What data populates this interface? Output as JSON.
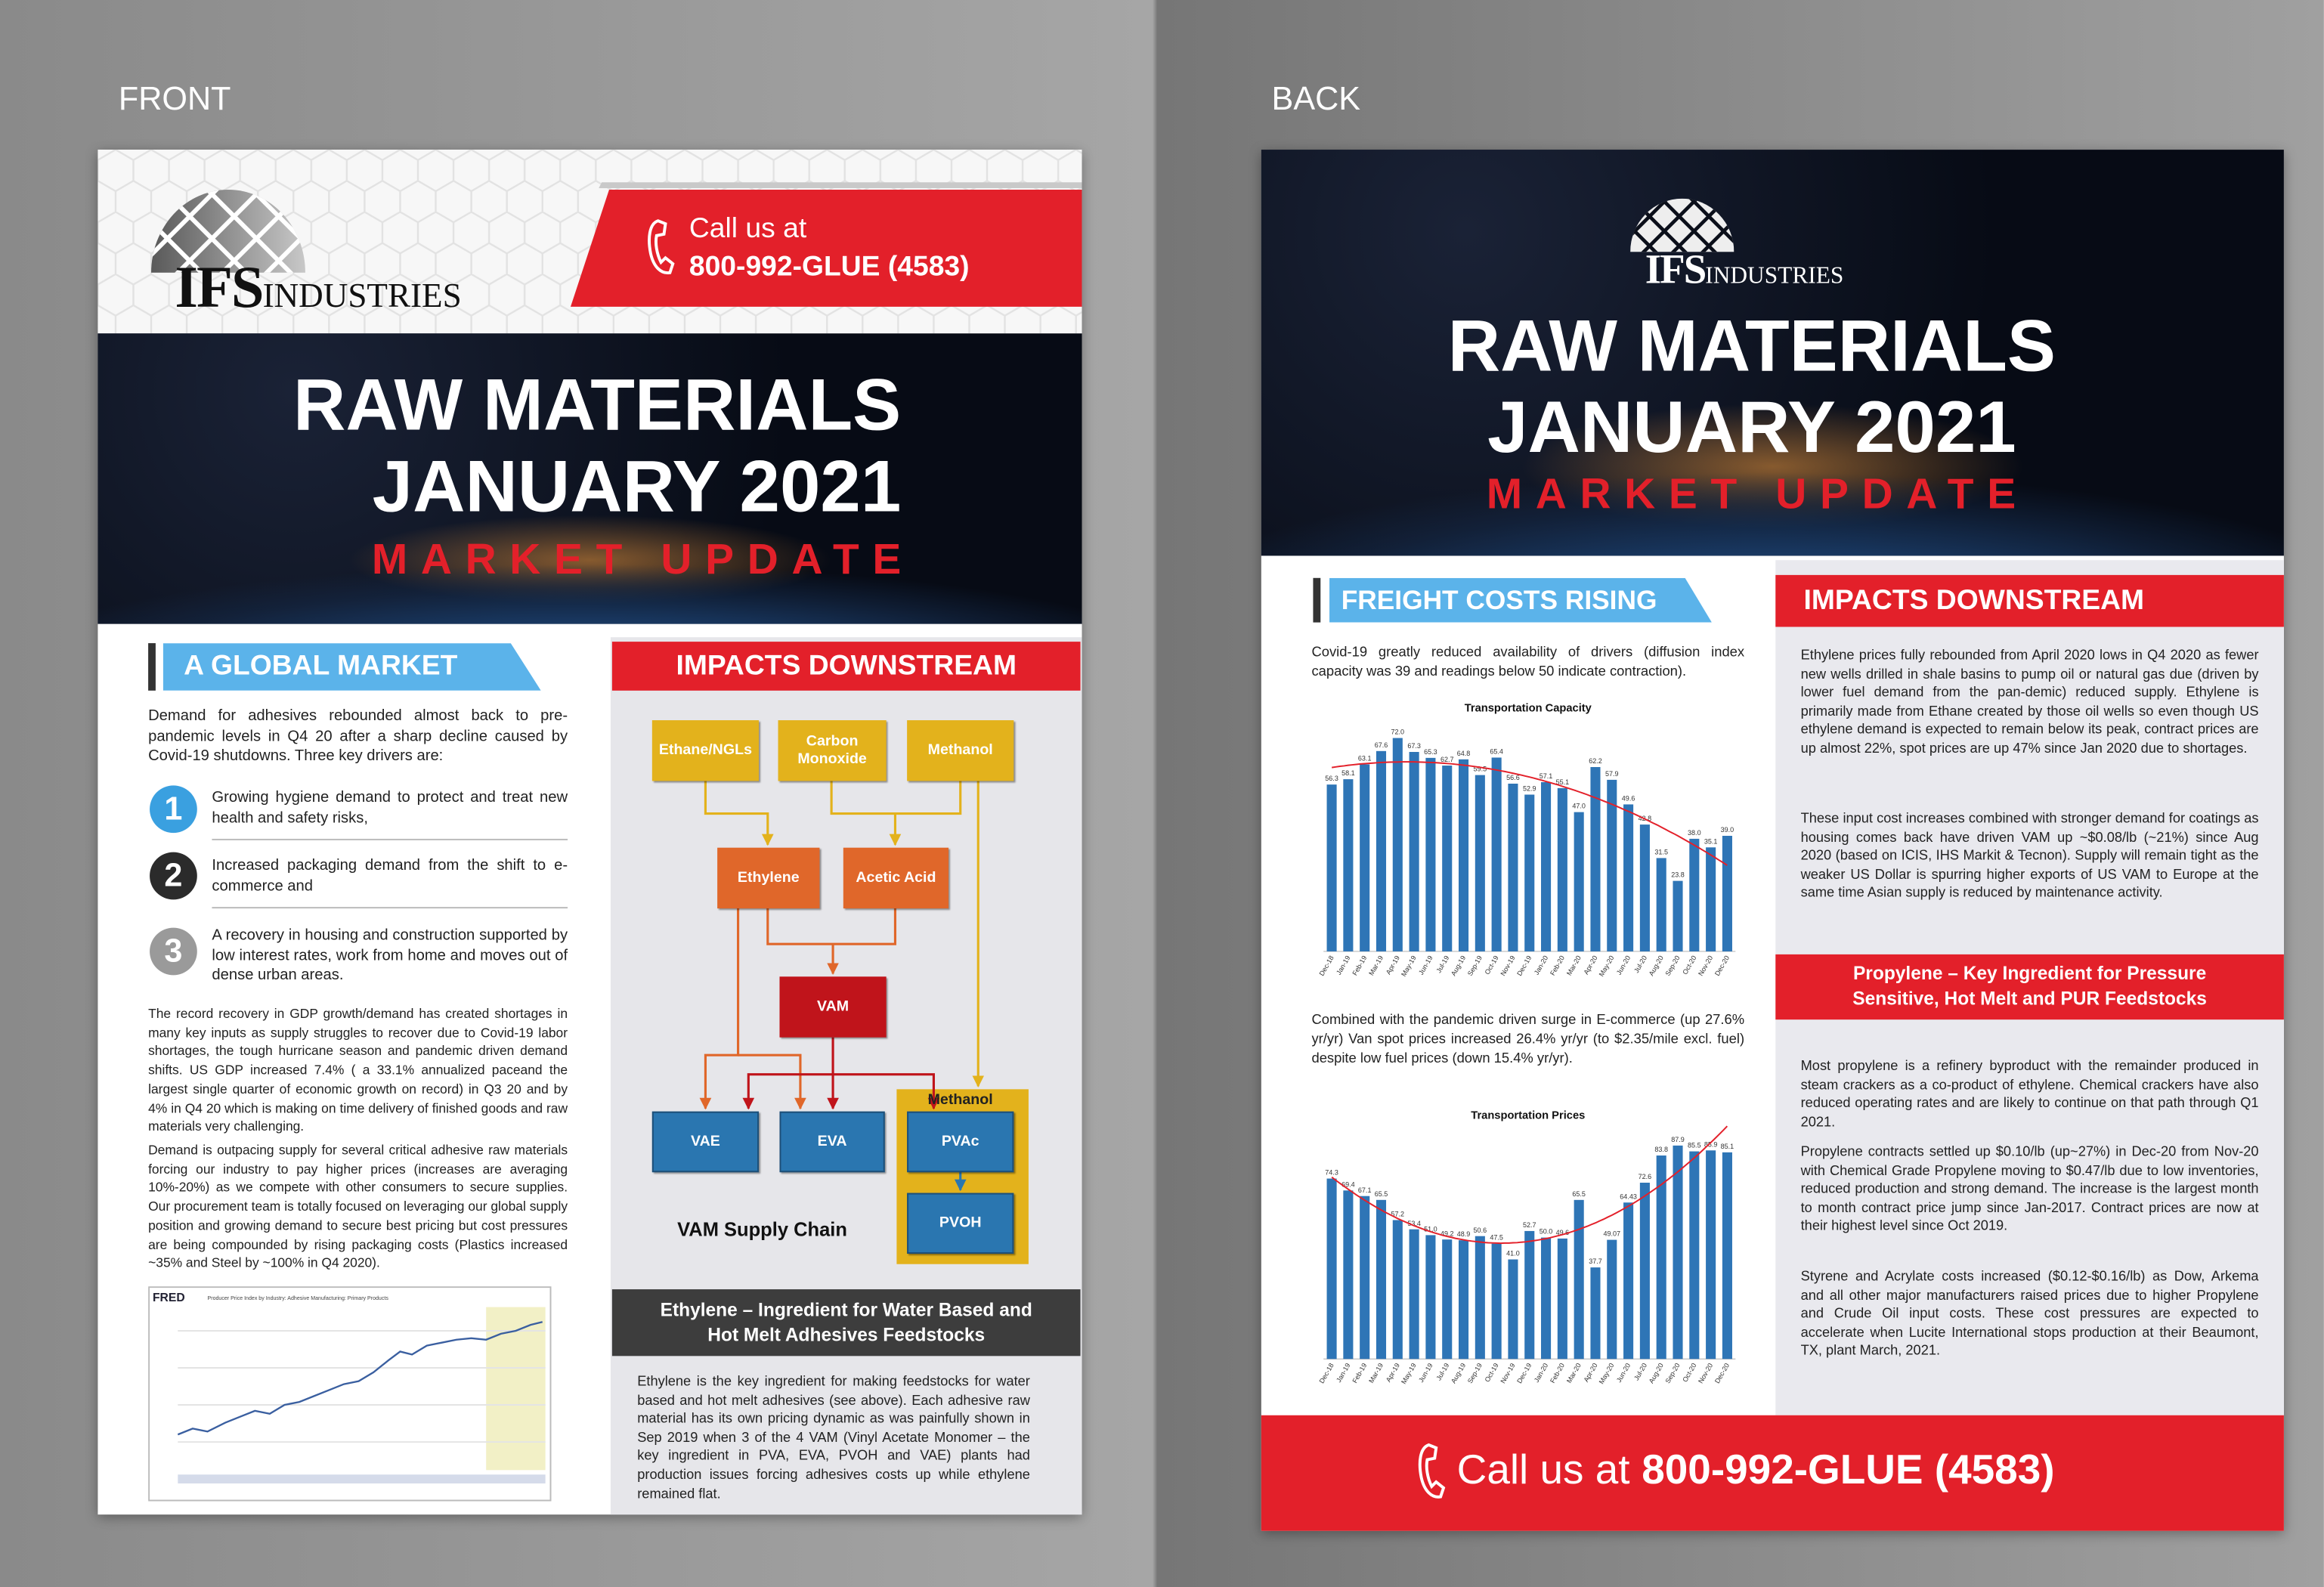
{
  "labels": {
    "front": "FRONT",
    "back": "BACK"
  },
  "front": {
    "logo": {
      "mark": "IFS",
      "name": "INDUSTRIES"
    },
    "call": {
      "lead": "Call us at",
      "number": "800-992-GLUE (4583)"
    },
    "hero": {
      "line1": "RAW MATERIALS",
      "line2": "JANUARY 2021",
      "line3": "MARKET UPDATE"
    },
    "global": {
      "heading": "A GLOBAL MARKET",
      "intro": "Demand for adhesives rebounded almost back to pre-pandemic levels in Q4 20 after a sharp decline caused by Covid-19 shutdowns. Three key drivers are:",
      "drivers": [
        {
          "number": "1",
          "text": "Growing hygiene demand to protect and treat new health and safety risks,"
        },
        {
          "number": "2",
          "text": "Increased packaging demand from the shift to e-commerce and"
        },
        {
          "number": "3",
          "text": "A recovery in housing and construction supported by low interest rates, work from home and moves out of dense urban areas."
        }
      ],
      "paragraphs": [
        "The record recovery in GDP growth/demand has created shortages in many key inputs as supply struggles to recover due to Covid-19 labor shortages, the tough hurricane season and pandemic driven demand shifts. US GDP increased 7.4% ( a 33.1% annualized paceand the largest single quarter of economic growth on record) in Q3 20 and by 4% in Q4 20 which is making on time delivery of finished goods and raw materials very challenging.",
        "Demand is outpacing supply for several critical adhesive raw materials forcing our industry to pay higher prices (increases are averaging 10%-20%) as we compete with other consumers to secure supplies. Our procurement team is totally focused on leveraging our global supply position and growing demand to secure best pricing but cost pressures are being compounded by rising packaging costs (Plastics increased ~35% and Steel by ~100% in Q4 2020)."
      ]
    },
    "fred": {
      "logo": "FRED",
      "title": "Producer Price Index by Industry: Adhesive Manufacturing: Primary Products"
    },
    "impacts": {
      "heading": "IMPACTS DOWNSTREAM"
    },
    "diagram": {
      "nodes": [
        "Ethane/NGLs",
        "Carbon Monoxide",
        "Methanol",
        "Ethylene",
        "Acetic Acid",
        "VAM",
        "VAE",
        "EVA",
        "PVAc",
        "PVOH"
      ],
      "frame_label": "Methanol",
      "caption": "VAM Supply Chain"
    },
    "ethylene": {
      "heading": "Ethylene – Ingredient for Water Based and Hot Melt Adhesives Feedstocks",
      "text": "Ethylene is the key ingredient for making feedstocks for water based and hot melt adhesives (see above). Each adhesive raw material has its own pricing dynamic as was painfully shown in Sep 2019 when 3 of the 4 VAM (Vinyl Acetate Monomer – the key ingredient in PVA, EVA, PVOH and VAE) plants had production issues forcing adhesives costs up while ethylene remained flat."
    }
  },
  "back": {
    "logo": {
      "mark": "IFS",
      "name": "INDUSTRIES"
    },
    "hero": {
      "line1": "RAW MATERIALS",
      "line2": "JANUARY 2021",
      "line3": "MARKET UPDATE"
    },
    "freight": {
      "heading": "FREIGHT COSTS RISING",
      "paragraphs": [
        "Covid-19 greatly reduced availability of drivers (diffusion index capacity was 39 and readings below 50 indicate contraction).",
        "Combined with the pandemic driven surge in E-commerce (up 27.6% yr/yr) Van spot prices increased 26.4% yr/yr (to $2.35/mile excl. fuel) despite low fuel prices (down 15.4% yr/yr)."
      ]
    },
    "impacts": {
      "heading": "IMPACTS DOWNSTREAM",
      "paragraphs": [
        "Ethylene prices fully rebounded from April 2020 lows in Q4 2020 as fewer new wells drilled in shale basins to pump oil or natural gas due (driven by lower fuel demand from the pan-demic) reduced supply. Ethylene is primarily made from Ethane created by those oil wells so even though US ethylene demand is expected to remain below its peak, contract prices are up almost 22%, spot prices are up 47% since Jan 2020 due to shortages.",
        "These input cost increases combined with stronger demand for coatings as housing comes back have driven VAM up ~$0.08/lb (~21%) since Aug 2020 (based on ICIS, IHS Markit & Tecnon). Supply will remain tight as the weaker US Dollar is spurring higher exports of US VAM to Europe at the same time Asian supply is reduced by maintenance activity."
      ]
    },
    "propylene": {
      "heading": "Propylene – Key Ingredient for Pressure Sensitive, Hot Melt and PUR Feedstocks",
      "paragraphs": [
        "Most propylene is a refinery byproduct with the remainder produced in steam crackers as a co-product of ethylene. Chemical crackers have also reduced operating rates and are likely to continue on that path through Q1 2021.",
        "Propylene contracts settled up $0.10/lb (up~27%) in Dec-20 from Nov-20 with Chemical Grade Propylene moving to $0.47/lb due to low inventories, reduced production and strong demand. The increase is the largest month to month contract price jump since Jan-2017. Contract prices are now at their highest level since Oct 2019.",
        "Styrene and Acrylate costs increased ($0.12-$0.16/lb) as Dow, Arkema and all other major manufacturers raised prices due to higher Propylene and Crude Oil input costs. These cost pressures are expected to accelerate when Lucite International stops production at their Beaumont, TX, plant March, 2021."
      ]
    },
    "footer": {
      "lead": "Call us at",
      "number": "800-992-GLUE (4583)"
    }
  },
  "chart_data": [
    {
      "type": "bar",
      "title": "Transportation Capacity",
      "color": "#2e75b6",
      "trend_color": "#e3202a",
      "categories": [
        "Dec-18",
        "Jan-19",
        "Feb-19",
        "Mar-19",
        "Apr-19",
        "May-19",
        "Jun-19",
        "Jul-19",
        "Aug-19",
        "Sep-19",
        "Oct-19",
        "Nov-19",
        "Dec-19",
        "Jan-20",
        "Feb-20",
        "Mar-20",
        "Apr-20",
        "May-20",
        "Jun-20",
        "Jul-20",
        "Aug-20",
        "Sep-20",
        "Oct-20",
        "Nov-20",
        "Dec-20"
      ],
      "values": [
        56.3,
        58.1,
        63.1,
        67.6,
        72.0,
        67.3,
        65.3,
        62.7,
        64.8,
        59.5,
        65.4,
        56.6,
        52.9,
        57.1,
        55.1,
        47.0,
        62.2,
        57.9,
        49.6,
        42.8,
        31.5,
        23.8,
        38.0,
        35.1,
        39.0
      ],
      "value_labels": [
        "56.3",
        "58.1",
        "63.1",
        "67.6",
        "72.0",
        "67.3",
        "65.3",
        "62.7",
        "64.8",
        "59.5",
        "65.4",
        "56.6",
        "52.9",
        "57.1",
        "55.1",
        "47.0",
        "62.2",
        "57.9",
        "49.6",
        "42.8",
        "31.5",
        "23.8",
        "38.0",
        "35.1",
        "39.0"
      ]
    },
    {
      "type": "bar",
      "title": "Transportation Prices",
      "color": "#2e75b6",
      "trend_color": "#e3202a",
      "categories": [
        "Dec-18",
        "Jan-19",
        "Feb-19",
        "Mar-19",
        "Apr-19",
        "May-19",
        "Jun-19",
        "Jul-19",
        "Aug-19",
        "Sep-19",
        "Oct-19",
        "Nov-19",
        "Dec-19",
        "Jan-20",
        "Feb-20",
        "Mar-20",
        "Apr-20",
        "May-20",
        "Jun-20",
        "Jul-20",
        "Aug-20",
        "Sep-20",
        "Oct-20",
        "Nov-20",
        "Dec-20"
      ],
      "values": [
        74.3,
        69.4,
        67.1,
        65.5,
        57.2,
        53.4,
        51.0,
        49.2,
        48.9,
        50.6,
        47.5,
        41.0,
        52.7,
        50.0,
        49.6,
        65.5,
        37.7,
        49.07,
        64.43,
        72.6,
        83.8,
        87.9,
        85.5,
        85.9,
        85.1
      ],
      "value_labels": [
        "74.3",
        "69.4",
        "67.1",
        "65.5",
        "57.2",
        "53.4",
        "51.0",
        "49.2",
        "48.9",
        "50.6",
        "47.5",
        "41.0",
        "52.7",
        "50.0",
        "49.6",
        "65.5",
        "37.7",
        "49.07",
        "64.43",
        "72.6",
        "83.8",
        "87.9",
        "85.5",
        "85.9",
        "85.1"
      ]
    }
  ]
}
